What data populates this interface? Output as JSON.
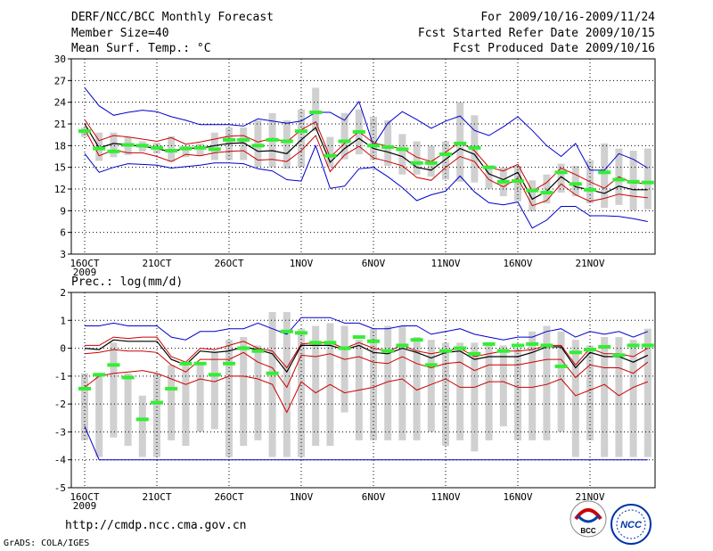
{
  "header": {
    "title": "DERF/NCC/BCC Monthly Forecast",
    "member_size": "Member Size=40",
    "variable": "Mean Surf. Temp.: °C",
    "period": "For 2009/10/16-2009/11/24",
    "started": "Fcst Started Refer Date 2009/10/15",
    "produced": "Fcst Produced Date 2009/10/16"
  },
  "footer": {
    "url": "http://cmdp.ncc.cma.gov.cn",
    "credit": "GrADS: COLA/IGES",
    "logo_bcc": "BCC",
    "logo_ncc": "NCC"
  },
  "colors": {
    "range": "#0000cc",
    "spread": "#cc0000",
    "mean": "#000000",
    "obs": "#33ee33",
    "box": "#d0d0d0",
    "grid": "#000000"
  },
  "chart_data": [
    {
      "type": "line",
      "title": "Mean Surf. Temp.: °C",
      "ylim": [
        3,
        30
      ],
      "yticks": [
        3,
        6,
        9,
        12,
        15,
        18,
        21,
        24,
        27,
        30
      ],
      "xticks": [
        "16OCT",
        "21OCT",
        "26OCT",
        "1NOV",
        "6NOV",
        "11NOV",
        "16NOV",
        "21NOV"
      ],
      "xsub": "2009",
      "n_days": 40,
      "series": [
        {
          "name": "max",
          "values": [
            26.0,
            23.5,
            22.2,
            22.6,
            22.9,
            22.7,
            22.0,
            21.5,
            20.9,
            20.9,
            20.9,
            20.7,
            21.7,
            21.4,
            21.1,
            21.4,
            22.6,
            22.6,
            21.5,
            24.1,
            18.0,
            21.1,
            22.7,
            21.6,
            20.4,
            21.4,
            22.1,
            20.1,
            19.4,
            20.6,
            22.0,
            20.1,
            18.0,
            16.5,
            18.3,
            14.6,
            14.6,
            16.9,
            16.1,
            14.9
          ]
        },
        {
          "name": "upper",
          "values": [
            21.6,
            18.7,
            19.4,
            19.2,
            18.9,
            18.6,
            19.1,
            18.2,
            18.5,
            18.9,
            19.3,
            19.4,
            18.5,
            19.0,
            18.5,
            20.2,
            21.3,
            16.4,
            18.3,
            19.9,
            18.4,
            17.9,
            17.6,
            16.4,
            15.8,
            17.1,
            18.5,
            17.3,
            15.0,
            14.5,
            15.4,
            11.7,
            12.9,
            14.9,
            14.0,
            13.0,
            12.1,
            13.7,
            12.8,
            12.8
          ]
        },
        {
          "name": "mean",
          "values": [
            21.0,
            17.7,
            18.3,
            18.1,
            17.9,
            17.6,
            17.1,
            17.7,
            17.6,
            18.0,
            18.3,
            18.4,
            17.2,
            17.3,
            16.9,
            18.8,
            20.5,
            15.7,
            17.6,
            19.0,
            17.6,
            17.1,
            16.5,
            15.0,
            14.6,
            16.1,
            17.6,
            16.8,
            14.1,
            13.3,
            14.3,
            10.6,
            11.7,
            13.7,
            12.3,
            11.9,
            11.4,
            12.4,
            11.9,
            11.9
          ]
        },
        {
          "name": "lower",
          "values": [
            20.3,
            16.6,
            17.4,
            17.0,
            17.0,
            16.5,
            15.8,
            16.8,
            16.6,
            17.0,
            17.2,
            17.3,
            16.0,
            16.1,
            15.8,
            17.3,
            19.4,
            14.4,
            16.7,
            17.9,
            16.3,
            15.8,
            15.2,
            13.6,
            13.2,
            15.0,
            16.5,
            15.8,
            13.3,
            12.3,
            13.5,
            9.7,
            10.4,
            12.7,
            11.2,
            10.3,
            10.7,
            11.3,
            11.0,
            10.8
          ]
        },
        {
          "name": "min",
          "values": [
            16.9,
            14.3,
            15.0,
            15.5,
            15.4,
            15.3,
            14.9,
            15.1,
            15.3,
            15.6,
            15.6,
            15.5,
            14.8,
            14.5,
            13.3,
            13.1,
            18.0,
            12.1,
            12.4,
            14.8,
            15.0,
            13.7,
            12.2,
            10.4,
            11.2,
            11.7,
            13.8,
            11.6,
            10.1,
            9.8,
            10.2,
            6.6,
            7.7,
            9.6,
            9.6,
            8.3,
            8.3,
            8.2,
            7.9,
            7.5
          ]
        },
        {
          "name": "observed",
          "values": [
            20.0,
            17.6,
            17.2,
            18.1,
            18.0,
            17.7,
            17.3,
            17.6,
            17.7,
            17.5,
            18.8,
            18.8,
            18.0,
            18.8,
            18.6,
            20.0,
            22.6,
            16.6,
            18.6,
            19.9,
            18.0,
            17.8,
            17.5,
            15.6,
            15.6,
            16.8,
            18.3,
            17.7,
            15.0,
            13.0,
            13.1,
            11.8,
            11.5,
            14.3,
            12.7,
            11.9,
            14.3,
            13.3,
            13.0,
            12.9
          ]
        },
        {
          "name": "box_high",
          "values": [
            20.5,
            19.8,
            19.8,
            19.2,
            18.6,
            18.4,
            19.3,
            18.0,
            18.3,
            19.8,
            20.5,
            20.5,
            21.5,
            22.5,
            21.5,
            23.0,
            26.0,
            19.2,
            22.5,
            23.0,
            22.0,
            21.5,
            19.6,
            18.6,
            18.0,
            18.6,
            24.0,
            22.2,
            15.0,
            15.0,
            15.2,
            13.2,
            14.0,
            15.5,
            15.2,
            16.0,
            18.3,
            17.6,
            17.3,
            17.6
          ]
        },
        {
          "name": "box_low",
          "values": [
            19.2,
            15.9,
            16.4,
            16.7,
            17.2,
            16.9,
            15.8,
            16.4,
            16.6,
            16.0,
            16.0,
            16.0,
            15.0,
            15.0,
            14.8,
            15.0,
            20.0,
            15.0,
            16.1,
            16.8,
            16.0,
            15.2,
            14.0,
            14.0,
            13.7,
            13.3,
            13.0,
            12.9,
            12.0,
            11.0,
            10.3,
            8.9,
            10.0,
            11.5,
            11.0,
            10.0,
            9.4,
            9.8,
            9.0,
            9.2
          ]
        }
      ]
    },
    {
      "type": "line",
      "title": "Prec.: log(mm/d)",
      "ylim": [
        -5,
        2
      ],
      "yticks": [
        -5,
        -4,
        -3,
        -2,
        -1,
        0,
        1,
        2
      ],
      "xticks": [
        "16OCT",
        "21OCT",
        "26OCT",
        "1NOV",
        "6NOV",
        "11NOV",
        "16NOV",
        "21NOV"
      ],
      "xsub": "2009",
      "n_days": 40,
      "series": [
        {
          "name": "max",
          "values": [
            0.8,
            0.8,
            0.9,
            0.8,
            0.8,
            0.8,
            0.4,
            0.3,
            0.6,
            0.6,
            0.7,
            0.7,
            0.9,
            0.7,
            0.5,
            1.1,
            1.1,
            1.1,
            0.9,
            0.9,
            0.7,
            0.7,
            0.8,
            0.8,
            0.5,
            0.6,
            0.7,
            0.5,
            0.4,
            0.3,
            0.4,
            0.4,
            0.6,
            0.7,
            0.4,
            0.6,
            0.5,
            0.6,
            0.4,
            0.6
          ]
        },
        {
          "name": "upper",
          "values": [
            0.1,
            0.1,
            0.4,
            0.35,
            0.4,
            0.4,
            -0.3,
            -0.5,
            0.0,
            -0.05,
            0.1,
            0.25,
            0.0,
            -0.1,
            -0.7,
            0.15,
            0.2,
            0.2,
            0.0,
            0.2,
            0.0,
            -0.1,
            0.1,
            -0.1,
            -0.2,
            -0.1,
            0.0,
            -0.3,
            -0.2,
            -0.1,
            -0.1,
            -0.05,
            0.1,
            0.1,
            -0.6,
            0.0,
            -0.2,
            -0.2,
            -0.3,
            0.0
          ]
        },
        {
          "name": "mean",
          "values": [
            0.0,
            -0.05,
            0.3,
            0.25,
            0.25,
            0.25,
            -0.4,
            -0.6,
            -0.1,
            -0.15,
            -0.1,
            0.05,
            -0.05,
            -0.2,
            -0.85,
            0.1,
            0.1,
            0.1,
            -0.05,
            0.1,
            -0.15,
            -0.2,
            0.0,
            -0.15,
            -0.35,
            -0.15,
            -0.1,
            -0.4,
            -0.3,
            -0.3,
            -0.3,
            -0.15,
            0.05,
            0.05,
            -0.7,
            -0.15,
            -0.3,
            -0.3,
            -0.5,
            -0.25
          ]
        },
        {
          "name": "lower",
          "values": [
            -0.2,
            -0.15,
            -0.05,
            -0.1,
            -0.1,
            -0.15,
            -0.6,
            -0.85,
            -0.4,
            -0.4,
            -0.4,
            -0.15,
            -0.5,
            -0.7,
            -1.4,
            -0.25,
            -0.3,
            -0.2,
            -0.4,
            -0.3,
            -0.5,
            -0.55,
            -0.3,
            -0.55,
            -0.7,
            -0.55,
            -0.5,
            -0.8,
            -0.6,
            -0.6,
            -0.6,
            -0.5,
            -0.4,
            -0.4,
            -1.05,
            -0.6,
            -0.7,
            -0.7,
            -0.9,
            -0.5
          ]
        },
        {
          "name": "min",
          "values": [
            -2.8,
            -4.0,
            -4.0,
            -4.0,
            -4.0,
            -4.0,
            -4.0,
            -4.0,
            -4.0,
            -4.0,
            -4.0,
            -4.0,
            -4.0,
            -4.0,
            -4.0,
            -4.0,
            -4.0,
            -4.0,
            -4.0,
            -4.0,
            -4.0,
            -4.0,
            -4.0,
            -4.0,
            -4.0,
            -4.0,
            -4.0,
            -4.0,
            -4.0,
            -4.0,
            -4.0,
            -4.0,
            -4.0,
            -4.0,
            -4.0,
            -4.0,
            -4.0,
            -4.0,
            -4.0,
            -4.0
          ]
        },
        {
          "name": "lower_extreme",
          "values": [
            -1.4,
            -1.0,
            -0.9,
            -0.85,
            -0.8,
            -0.9,
            -1.1,
            -1.3,
            -1.1,
            -1.2,
            -1.0,
            -1.0,
            -1.1,
            -1.3,
            -2.3,
            -1.2,
            -1.6,
            -1.3,
            -1.6,
            -1.5,
            -1.4,
            -1.2,
            -1.1,
            -1.5,
            -1.3,
            -1.1,
            -1.4,
            -1.4,
            -1.2,
            -1.2,
            -1.4,
            -1.4,
            -1.3,
            -1.1,
            -1.7,
            -1.5,
            -1.3,
            -1.7,
            -1.4,
            -1.2
          ]
        },
        {
          "name": "observed",
          "values": [
            -1.45,
            -0.95,
            -0.6,
            -1.05,
            -2.55,
            -1.95,
            -1.45,
            -0.55,
            -0.55,
            -0.95,
            -0.55,
            0.0,
            -0.1,
            -0.9,
            0.6,
            0.55,
            0.2,
            0.2,
            0.0,
            0.4,
            0.25,
            -0.1,
            0.1,
            0.3,
            -0.6,
            -0.1,
            0.0,
            -0.2,
            0.15,
            -0.1,
            0.1,
            0.15,
            0.1,
            -0.65,
            -0.15,
            -0.05,
            0.05,
            -0.25,
            0.1,
            0.1
          ]
        },
        {
          "name": "box_high",
          "values": [
            -0.9,
            -0.9,
            0.2,
            -0.9,
            -1.7,
            -0.9,
            -0.6,
            -0.5,
            -0.5,
            -0.1,
            0.3,
            0.4,
            0.1,
            1.3,
            1.3,
            0.7,
            0.8,
            0.9,
            0.8,
            0.3,
            0.7,
            0.8,
            0.8,
            0.4,
            0.3,
            0.2,
            0.2,
            0.2,
            0.2,
            0.1,
            0.0,
            0.6,
            0.8,
            0.6,
            0.3,
            0.1,
            0.4,
            0.4,
            0.3,
            0.7
          ]
        },
        {
          "name": "box_low",
          "values": [
            -3.3,
            -3.9,
            -3.2,
            -3.5,
            -3.9,
            -3.9,
            -3.3,
            -3.5,
            -3.0,
            -2.9,
            -3.9,
            -3.5,
            -3.3,
            -3.9,
            -3.9,
            -3.9,
            -3.5,
            -3.5,
            -2.3,
            -3.3,
            -3.3,
            -3.3,
            -3.3,
            -3.3,
            -3.0,
            -3.5,
            -3.3,
            -3.7,
            -3.3,
            -2.8,
            -3.3,
            -3.3,
            -3.3,
            -3.0,
            -3.9,
            -3.3,
            -3.9,
            -3.9,
            -3.9,
            -3.9
          ]
        }
      ]
    }
  ]
}
